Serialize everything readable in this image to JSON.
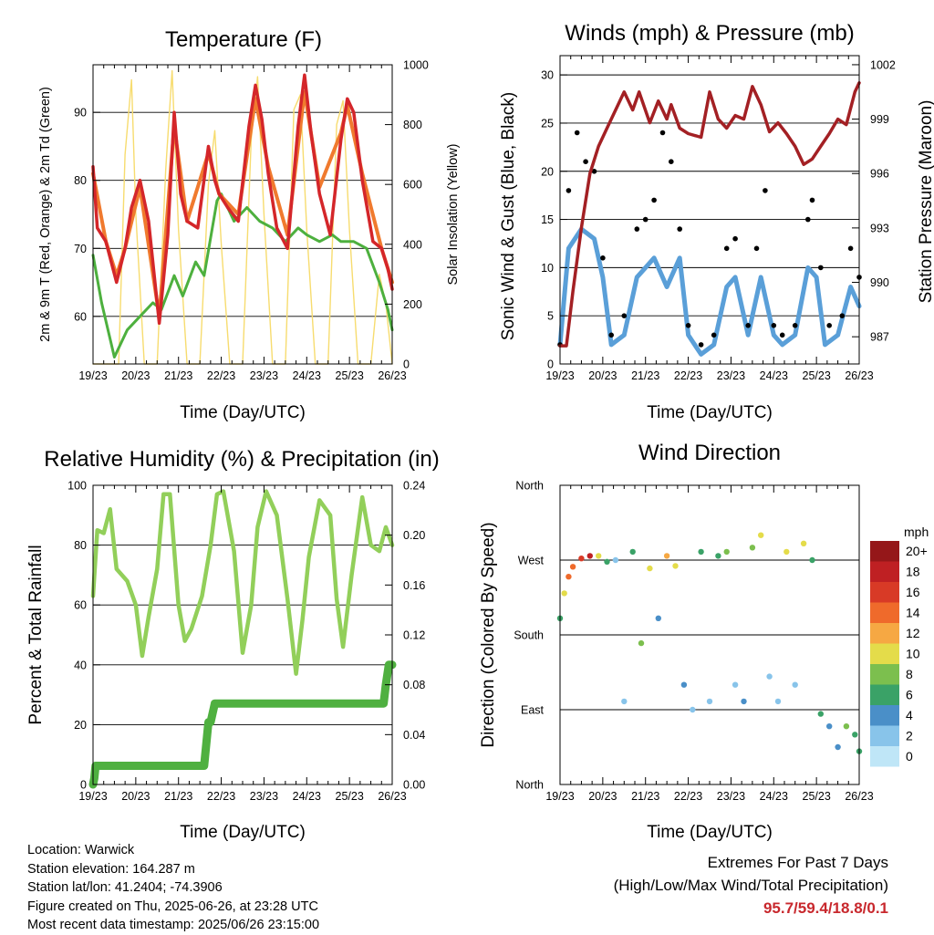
{
  "x_ticks": [
    "19/23",
    "20/23",
    "21/23",
    "22/23",
    "23/23",
    "24/23",
    "25/23",
    "26/23"
  ],
  "x_label": "Time (Day/UTC)",
  "colors": {
    "temp_2m": "#d4262a",
    "temp_9m": "#f07a2e",
    "dewpoint": "#4db03e",
    "solar": "#f7dc6f",
    "wind": "#5a9fd8",
    "gust": "#000000",
    "pressure": "#a32024",
    "rh": "#92cf5a",
    "precip": "#4fb040"
  },
  "panels": {
    "temperature": {
      "title": "Temperature (F)",
      "ylabel_left": "2m & 9m T (Red, Orange) & 2m Td (Green)",
      "ylabel_right": "Solar Insolation (Yellow)",
      "yticks_left": [
        "60",
        "70",
        "80",
        "90"
      ],
      "yticks_right": [
        "0",
        "200",
        "400",
        "600",
        "800",
        "1000"
      ]
    },
    "winds": {
      "title": "Winds (mph) & Pressure (mb)",
      "ylabel_left": "Sonic Wind & Gust (Blue, Black)",
      "ylabel_right": "Station Pressure (Maroon)",
      "yticks_left": [
        "0",
        "5",
        "10",
        "15",
        "20",
        "25",
        "30"
      ],
      "yticks_right": [
        "987",
        "990",
        "993",
        "996",
        "999",
        "1002"
      ]
    },
    "humidity": {
      "title": "Relative Humidity (%) & Precipitation (in)",
      "ylabel_left": "Percent & Total Rainfall",
      "yticks_left": [
        "0",
        "20",
        "40",
        "60",
        "80",
        "100"
      ],
      "yticks_right": [
        "0.00",
        "0.04",
        "0.08",
        "0.12",
        "0.16",
        "0.20",
        "0.24"
      ]
    },
    "direction": {
      "title": "Wind Direction",
      "ylabel_left": "Direction (Colored By Speed)",
      "yticks_left": [
        "North",
        "East",
        "South",
        "West",
        "North"
      ],
      "colorbar_title": "mph",
      "colorbar_labels": [
        "0",
        "2",
        "4",
        "6",
        "8",
        "10",
        "12",
        "14",
        "16",
        "18",
        "20+"
      ],
      "colorbar_colors": [
        "#bfe6f7",
        "#88c4ea",
        "#4a8fc8",
        "#3aa267",
        "#7cbf4e",
        "#e4dc4a",
        "#f6a843",
        "#ef6a2b",
        "#d83a26",
        "#bf2023",
        "#951719"
      ]
    }
  },
  "info": {
    "location": "Location: Warwick",
    "elevation": "Station elevation: 164.287 m",
    "latlon": "Station lat/lon: 41.2404; -74.3906",
    "created": "Figure created on Thu, 2025-06-26, at 23:28 UTC",
    "recent": "Most recent data timestamp: 2025/06/26 23:15:00"
  },
  "extremes": {
    "line1": "Extremes For Past 7 Days",
    "line2": "(High/Low/Max Wind/Total Precipitation)",
    "values": "95.7/59.4/18.8/0.1"
  },
  "chart_data": [
    {
      "type": "line",
      "title": "Temperature (F)",
      "x_unit": "days since 19/23 UTC",
      "ylim": [
        53,
        97
      ],
      "ylim_right": [
        0,
        1000
      ],
      "grid": true,
      "series": [
        {
          "name": "2m T (Red)",
          "x": [
            0,
            0.1,
            0.3,
            0.55,
            0.75,
            0.9,
            1.1,
            1.3,
            1.55,
            1.75,
            1.9,
            2.05,
            2.2,
            2.45,
            2.7,
            2.85,
            2.95,
            3.15,
            3.4,
            3.65,
            3.8,
            3.95,
            4.1,
            4.3,
            4.55,
            4.8,
            4.95,
            5.1,
            5.3,
            5.55,
            5.8,
            5.95,
            6.1,
            6.3,
            6.55,
            6.75,
            6.9,
            7.0
          ],
          "y": [
            82,
            73,
            71,
            65,
            70,
            76,
            80,
            74,
            59,
            72,
            90,
            78,
            74,
            73,
            85,
            80,
            78,
            76,
            74,
            88,
            94,
            89,
            81,
            73,
            70,
            88,
            95.5,
            87,
            78,
            72,
            86,
            92,
            90,
            80,
            71,
            70,
            67,
            64
          ]
        },
        {
          "name": "9m T (Orange)",
          "x": [
            0,
            0.3,
            0.55,
            0.75,
            1.1,
            1.55,
            1.9,
            2.2,
            2.7,
            2.95,
            3.4,
            3.8,
            4.1,
            4.55,
            4.95,
            5.3,
            5.8,
            5.95,
            6.3,
            6.75,
            7.0
          ],
          "y": [
            81,
            71,
            66,
            70,
            79,
            60,
            88,
            74,
            84,
            78,
            75,
            92,
            82,
            72,
            93,
            79,
            87,
            91,
            81,
            70,
            65
          ]
        },
        {
          "name": "2m Td (Green)",
          "x": [
            0,
            0.2,
            0.5,
            0.8,
            1.1,
            1.4,
            1.6,
            1.9,
            2.1,
            2.4,
            2.6,
            2.9,
            3.0,
            3.3,
            3.6,
            3.9,
            4.2,
            4.5,
            4.8,
            5.0,
            5.3,
            5.6,
            5.8,
            6.1,
            6.4,
            6.7,
            6.9,
            7.0
          ],
          "y": [
            69,
            62,
            54,
            58,
            60,
            62,
            61,
            66,
            63,
            68,
            66,
            77,
            78,
            74,
            76,
            74,
            73,
            71,
            73,
            72,
            71,
            72,
            71,
            71,
            70,
            65,
            61,
            58
          ]
        },
        {
          "name": "Solar Insolation (Yellow)",
          "axis": "right",
          "x": [
            0,
            0.6,
            0.75,
            0.9,
            1.0,
            1.2,
            1.5,
            1.7,
            1.85,
            2.0,
            2.2,
            2.5,
            2.7,
            2.85,
            3.0,
            3.2,
            3.5,
            3.7,
            3.85,
            4.0,
            4.2,
            4.5,
            4.7,
            4.85,
            5.0,
            5.2,
            5.5,
            5.7,
            5.85,
            6.0,
            6.2,
            6.5,
            6.7,
            6.85,
            7.0
          ],
          "y": [
            0,
            0,
            700,
            950,
            500,
            0,
            0,
            650,
            980,
            450,
            0,
            0,
            600,
            780,
            400,
            0,
            0,
            750,
            960,
            500,
            0,
            0,
            850,
            900,
            450,
            0,
            0,
            800,
            880,
            450,
            0,
            0,
            300,
            200,
            0
          ]
        }
      ]
    },
    {
      "type": "line",
      "title": "Winds (mph) & Pressure (mb)",
      "x_unit": "days since 19/23 UTC",
      "ylim": [
        0,
        32
      ],
      "ylim_right": [
        985.5,
        1002.5
      ],
      "grid": true,
      "series": [
        {
          "name": "Sonic Wind (Blue)",
          "x": [
            0,
            0.2,
            0.5,
            0.8,
            1.0,
            1.2,
            1.5,
            1.8,
            2.0,
            2.2,
            2.5,
            2.8,
            3.0,
            3.3,
            3.6,
            3.9,
            4.1,
            4.4,
            4.7,
            5.0,
            5.2,
            5.5,
            5.8,
            6.0,
            6.2,
            6.5,
            6.8,
            7.0
          ],
          "y": [
            2,
            12,
            14,
            13,
            9,
            2,
            3,
            9,
            10,
            11,
            8,
            11,
            3,
            1,
            2,
            8,
            9,
            3,
            9,
            3,
            2,
            3,
            10,
            9,
            2,
            3,
            8,
            6
          ]
        },
        {
          "name": "Gust (Black)",
          "x": [
            0,
            0.2,
            0.4,
            0.6,
            0.8,
            1.0,
            1.2,
            1.5,
            1.8,
            2.0,
            2.2,
            2.4,
            2.6,
            2.8,
            3.0,
            3.3,
            3.6,
            3.9,
            4.1,
            4.4,
            4.6,
            4.8,
            5.0,
            5.2,
            5.5,
            5.8,
            5.9,
            6.1,
            6.3,
            6.6,
            6.8,
            7.0
          ],
          "y": [
            2,
            18,
            24,
            21,
            20,
            11,
            3,
            5,
            14,
            15,
            17,
            24,
            21,
            14,
            4,
            2,
            3,
            12,
            13,
            4,
            12,
            18,
            4,
            3,
            4,
            15,
            17,
            10,
            4,
            5,
            12,
            9
          ]
        },
        {
          "name": "Station Pressure (Maroon)",
          "axis": "right",
          "x": [
            0,
            0.15,
            0.3,
            0.5,
            0.7,
            0.9,
            1.1,
            1.3,
            1.5,
            1.7,
            1.85,
            2.1,
            2.3,
            2.5,
            2.6,
            2.8,
            3.0,
            3.3,
            3.5,
            3.7,
            3.9,
            4.1,
            4.3,
            4.5,
            4.7,
            4.9,
            5.1,
            5.3,
            5.5,
            5.7,
            5.9,
            6.1,
            6.3,
            6.5,
            6.7,
            6.9,
            7.0
          ],
          "y": [
            986.5,
            986.5,
            989.5,
            993,
            996,
            997.5,
            998.5,
            999.5,
            1000.5,
            999.5,
            1000.5,
            998.8,
            1000,
            999,
            999.8,
            998.5,
            998.2,
            998,
            1000.5,
            999,
            998.5,
            999.2,
            999,
            1000.8,
            999.8,
            998.3,
            998.8,
            998.2,
            997.5,
            996.5,
            996.8,
            997.5,
            998.2,
            999,
            998.7,
            1000.5,
            1001
          ]
        }
      ]
    },
    {
      "type": "line",
      "title": "Relative Humidity (%) & Precipitation (in)",
      "x_unit": "days since 19/23 UTC",
      "ylim": [
        0,
        100
      ],
      "ylim_right": [
        0,
        0.24
      ],
      "grid": true,
      "series": [
        {
          "name": "Relative Humidity",
          "x": [
            0,
            0.1,
            0.25,
            0.4,
            0.55,
            0.8,
            1.0,
            1.15,
            1.3,
            1.5,
            1.65,
            1.8,
            2.0,
            2.15,
            2.3,
            2.55,
            2.75,
            2.9,
            3.05,
            3.3,
            3.5,
            3.7,
            3.85,
            4.05,
            4.3,
            4.55,
            4.75,
            4.9,
            5.05,
            5.3,
            5.55,
            5.7,
            5.85,
            6.05,
            6.3,
            6.5,
            6.7,
            6.85,
            7.0
          ],
          "y": [
            63,
            85,
            84,
            92,
            72,
            68,
            60,
            43,
            56,
            72,
            97,
            97,
            60,
            48,
            52,
            63,
            80,
            97,
            98,
            78,
            44,
            60,
            86,
            98,
            90,
            62,
            37,
            55,
            76,
            95,
            90,
            62,
            46,
            70,
            96,
            80,
            78,
            86,
            80
          ]
        },
        {
          "name": "Total Rainfall",
          "axis": "right",
          "x": [
            0,
            0.03,
            0.06,
            2.6,
            2.7,
            2.75,
            2.85,
            6.8,
            6.85,
            6.92,
            7.0
          ],
          "y": [
            0.0,
            0.005,
            0.015,
            0.015,
            0.05,
            0.05,
            0.065,
            0.065,
            0.08,
            0.096,
            0.096
          ]
        }
      ]
    },
    {
      "type": "scatter",
      "title": "Wind Direction",
      "x_unit": "days since 19/23 UTC",
      "ylim": [
        0,
        360
      ],
      "color_by": "speed (mph)",
      "grid": true,
      "series": [
        {
          "name": "Wind Direction",
          "x": [
            0.0,
            0.1,
            0.2,
            0.3,
            0.5,
            0.7,
            0.9,
            1.1,
            1.3,
            1.5,
            1.7,
            1.9,
            2.1,
            2.3,
            2.5,
            2.7,
            2.9,
            3.1,
            3.3,
            3.5,
            3.7,
            3.9,
            4.1,
            4.3,
            4.5,
            4.7,
            4.9,
            5.1,
            5.3,
            5.5,
            5.7,
            5.9,
            6.1,
            6.3,
            6.5,
            6.7,
            6.9,
            7.0
          ],
          "y": [
            200,
            230,
            250,
            262,
            272,
            275,
            275,
            268,
            270,
            100,
            280,
            170,
            260,
            200,
            275,
            263,
            120,
            90,
            280,
            100,
            275,
            280,
            120,
            100,
            285,
            300,
            130,
            100,
            280,
            120,
            290,
            270,
            85,
            70,
            45,
            70,
            60,
            40
          ],
          "speed": [
            6,
            10,
            13,
            14,
            16,
            18,
            10,
            6,
            2,
            1,
            6,
            8,
            10,
            4,
            12,
            9,
            3,
            2,
            6,
            2,
            6,
            8,
            2,
            3,
            8,
            10,
            2,
            2,
            9,
            2,
            9,
            6,
            5,
            4,
            3,
            8,
            6,
            5
          ]
        }
      ]
    }
  ]
}
